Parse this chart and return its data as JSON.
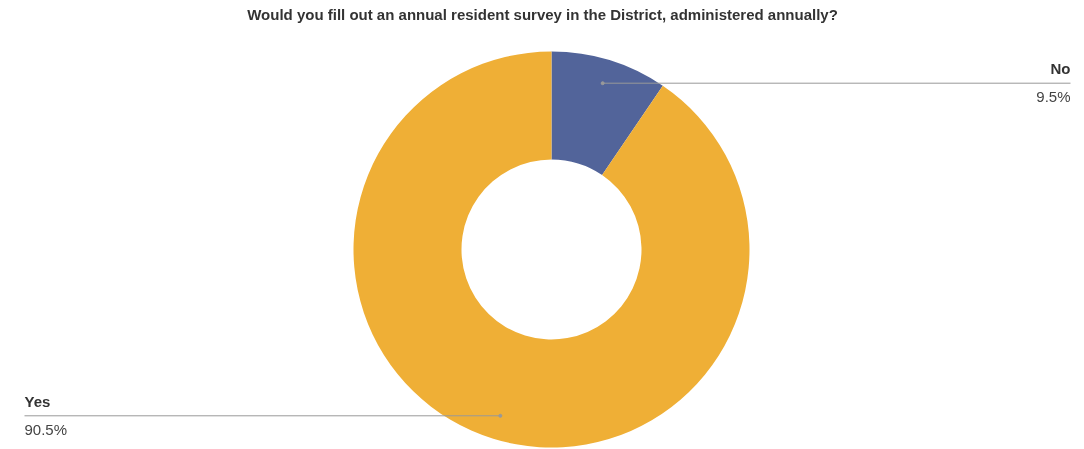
{
  "chart_data": {
    "type": "donut",
    "title": "Would you fill out an annual resident survey in the District, administered annually?",
    "categories": [
      "No",
      "Yes"
    ],
    "values": [
      9.5,
      90.5
    ],
    "colors": [
      "#52649a",
      "#efaf36"
    ],
    "value_labels": [
      "9.5%",
      "90.5%"
    ]
  }
}
